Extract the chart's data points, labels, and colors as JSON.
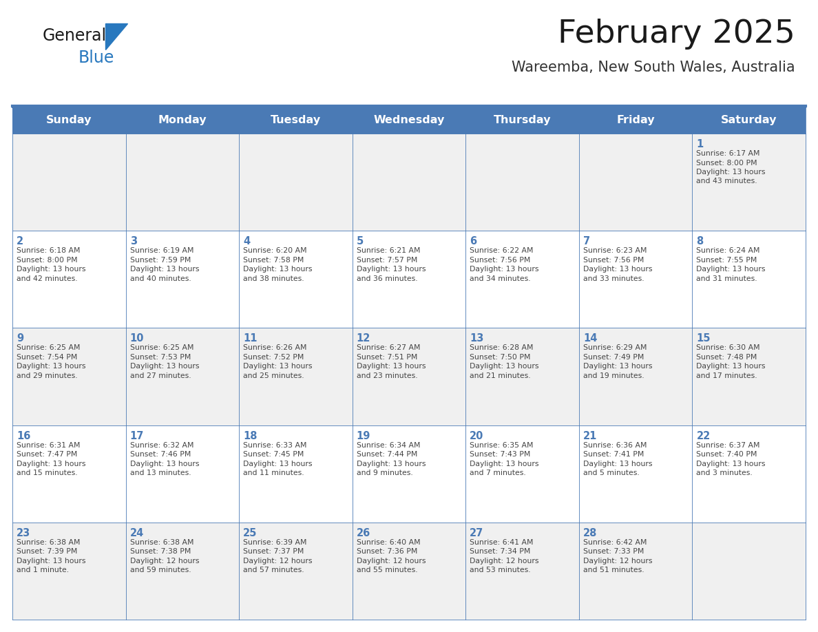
{
  "title": "February 2025",
  "subtitle": "Wareemba, New South Wales, Australia",
  "days_of_week": [
    "Sunday",
    "Monday",
    "Tuesday",
    "Wednesday",
    "Thursday",
    "Friday",
    "Saturday"
  ],
  "header_bg_color": "#4a7ab5",
  "header_text_color": "#ffffff",
  "cell_bg_light": "#f0f0f0",
  "cell_bg_white": "#ffffff",
  "border_color": "#4a7ab5",
  "day_number_color": "#4a7ab5",
  "text_color": "#444444",
  "title_color": "#1a1a1a",
  "subtitle_color": "#333333",
  "logo_general_color": "#1a1a1a",
  "logo_blue_color": "#2878be",
  "calendar_data": [
    {
      "day": 1,
      "col": 6,
      "row": 0,
      "sunrise": "6:17 AM",
      "sunset": "8:00 PM",
      "daylight_hours": 13,
      "daylight_minutes": 43
    },
    {
      "day": 2,
      "col": 0,
      "row": 1,
      "sunrise": "6:18 AM",
      "sunset": "8:00 PM",
      "daylight_hours": 13,
      "daylight_minutes": 42
    },
    {
      "day": 3,
      "col": 1,
      "row": 1,
      "sunrise": "6:19 AM",
      "sunset": "7:59 PM",
      "daylight_hours": 13,
      "daylight_minutes": 40
    },
    {
      "day": 4,
      "col": 2,
      "row": 1,
      "sunrise": "6:20 AM",
      "sunset": "7:58 PM",
      "daylight_hours": 13,
      "daylight_minutes": 38
    },
    {
      "day": 5,
      "col": 3,
      "row": 1,
      "sunrise": "6:21 AM",
      "sunset": "7:57 PM",
      "daylight_hours": 13,
      "daylight_minutes": 36
    },
    {
      "day": 6,
      "col": 4,
      "row": 1,
      "sunrise": "6:22 AM",
      "sunset": "7:56 PM",
      "daylight_hours": 13,
      "daylight_minutes": 34
    },
    {
      "day": 7,
      "col": 5,
      "row": 1,
      "sunrise": "6:23 AM",
      "sunset": "7:56 PM",
      "daylight_hours": 13,
      "daylight_minutes": 33
    },
    {
      "day": 8,
      "col": 6,
      "row": 1,
      "sunrise": "6:24 AM",
      "sunset": "7:55 PM",
      "daylight_hours": 13,
      "daylight_minutes": 31
    },
    {
      "day": 9,
      "col": 0,
      "row": 2,
      "sunrise": "6:25 AM",
      "sunset": "7:54 PM",
      "daylight_hours": 13,
      "daylight_minutes": 29
    },
    {
      "day": 10,
      "col": 1,
      "row": 2,
      "sunrise": "6:25 AM",
      "sunset": "7:53 PM",
      "daylight_hours": 13,
      "daylight_minutes": 27
    },
    {
      "day": 11,
      "col": 2,
      "row": 2,
      "sunrise": "6:26 AM",
      "sunset": "7:52 PM",
      "daylight_hours": 13,
      "daylight_minutes": 25
    },
    {
      "day": 12,
      "col": 3,
      "row": 2,
      "sunrise": "6:27 AM",
      "sunset": "7:51 PM",
      "daylight_hours": 13,
      "daylight_minutes": 23
    },
    {
      "day": 13,
      "col": 4,
      "row": 2,
      "sunrise": "6:28 AM",
      "sunset": "7:50 PM",
      "daylight_hours": 13,
      "daylight_minutes": 21
    },
    {
      "day": 14,
      "col": 5,
      "row": 2,
      "sunrise": "6:29 AM",
      "sunset": "7:49 PM",
      "daylight_hours": 13,
      "daylight_minutes": 19
    },
    {
      "day": 15,
      "col": 6,
      "row": 2,
      "sunrise": "6:30 AM",
      "sunset": "7:48 PM",
      "daylight_hours": 13,
      "daylight_minutes": 17
    },
    {
      "day": 16,
      "col": 0,
      "row": 3,
      "sunrise": "6:31 AM",
      "sunset": "7:47 PM",
      "daylight_hours": 13,
      "daylight_minutes": 15
    },
    {
      "day": 17,
      "col": 1,
      "row": 3,
      "sunrise": "6:32 AM",
      "sunset": "7:46 PM",
      "daylight_hours": 13,
      "daylight_minutes": 13
    },
    {
      "day": 18,
      "col": 2,
      "row": 3,
      "sunrise": "6:33 AM",
      "sunset": "7:45 PM",
      "daylight_hours": 13,
      "daylight_minutes": 11
    },
    {
      "day": 19,
      "col": 3,
      "row": 3,
      "sunrise": "6:34 AM",
      "sunset": "7:44 PM",
      "daylight_hours": 13,
      "daylight_minutes": 9
    },
    {
      "day": 20,
      "col": 4,
      "row": 3,
      "sunrise": "6:35 AM",
      "sunset": "7:43 PM",
      "daylight_hours": 13,
      "daylight_minutes": 7
    },
    {
      "day": 21,
      "col": 5,
      "row": 3,
      "sunrise": "6:36 AM",
      "sunset": "7:41 PM",
      "daylight_hours": 13,
      "daylight_minutes": 5
    },
    {
      "day": 22,
      "col": 6,
      "row": 3,
      "sunrise": "6:37 AM",
      "sunset": "7:40 PM",
      "daylight_hours": 13,
      "daylight_minutes": 3
    },
    {
      "day": 23,
      "col": 0,
      "row": 4,
      "sunrise": "6:38 AM",
      "sunset": "7:39 PM",
      "daylight_hours": 13,
      "daylight_minutes": 1
    },
    {
      "day": 24,
      "col": 1,
      "row": 4,
      "sunrise": "6:38 AM",
      "sunset": "7:38 PM",
      "daylight_hours": 12,
      "daylight_minutes": 59
    },
    {
      "day": 25,
      "col": 2,
      "row": 4,
      "sunrise": "6:39 AM",
      "sunset": "7:37 PM",
      "daylight_hours": 12,
      "daylight_minutes": 57
    },
    {
      "day": 26,
      "col": 3,
      "row": 4,
      "sunrise": "6:40 AM",
      "sunset": "7:36 PM",
      "daylight_hours": 12,
      "daylight_minutes": 55
    },
    {
      "day": 27,
      "col": 4,
      "row": 4,
      "sunrise": "6:41 AM",
      "sunset": "7:34 PM",
      "daylight_hours": 12,
      "daylight_minutes": 53
    },
    {
      "day": 28,
      "col": 5,
      "row": 4,
      "sunrise": "6:42 AM",
      "sunset": "7:33 PM",
      "daylight_hours": 12,
      "daylight_minutes": 51
    }
  ],
  "num_rows": 5,
  "num_cols": 7,
  "fig_width": 11.88,
  "fig_height": 9.18
}
